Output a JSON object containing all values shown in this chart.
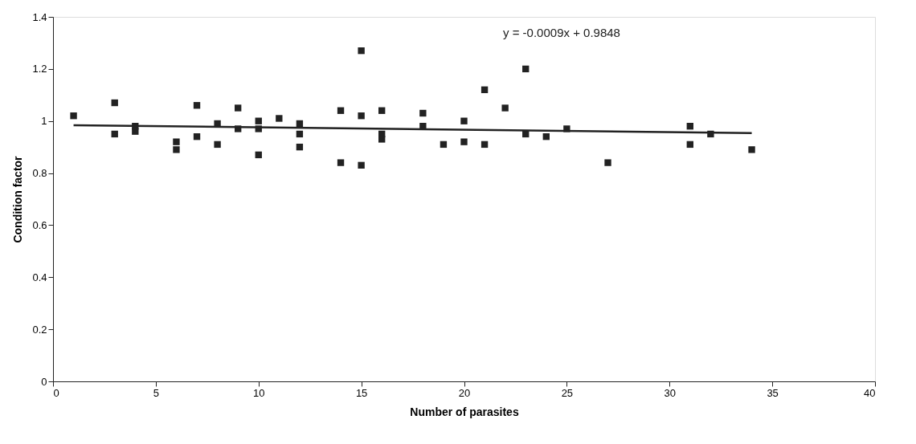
{
  "chart_data": {
    "type": "scatter",
    "xlabel": "Number of parasites",
    "ylabel": "Condition factor",
    "xlim": [
      0,
      40
    ],
    "xticks": [
      0,
      5,
      10,
      15,
      20,
      25,
      30,
      35,
      40
    ],
    "ylim": [
      0,
      1.4
    ],
    "yticks": [
      0,
      0.2,
      0.4,
      0.6,
      0.8,
      1,
      1.2,
      1.4
    ],
    "grid": false,
    "annotations": [
      "y = -0.0009x + 0.9848"
    ],
    "series": [
      {
        "color": "#222222",
        "marker": "square",
        "x": [
          1,
          3,
          3,
          4,
          4,
          6,
          6,
          7,
          7,
          8,
          8,
          9,
          9,
          10,
          10,
          10,
          11,
          12,
          12,
          12,
          14,
          14,
          15,
          15,
          15,
          16,
          16,
          16,
          18,
          18,
          19,
          20,
          20,
          21,
          21,
          22,
          23,
          23,
          24,
          25,
          27,
          31,
          31,
          32,
          34
        ],
        "values": [
          1.02,
          1.07,
          0.95,
          0.98,
          0.96,
          0.92,
          0.89,
          1.06,
          0.94,
          0.99,
          0.91,
          1.05,
          0.97,
          1.0,
          0.97,
          0.87,
          1.01,
          0.99,
          0.95,
          0.9,
          1.04,
          0.84,
          1.27,
          1.02,
          0.83,
          1.04,
          0.95,
          0.93,
          1.03,
          0.98,
          0.91,
          1.0,
          0.92,
          1.12,
          0.91,
          1.05,
          1.2,
          0.95,
          0.94,
          0.97,
          0.84,
          0.98,
          0.91,
          0.95,
          0.89
        ]
      },
      {
        "type": "line",
        "color": "#222222",
        "line_style": "solid",
        "x": [
          1,
          34
        ],
        "values": [
          0.984,
          0.954
        ]
      }
    ]
  }
}
